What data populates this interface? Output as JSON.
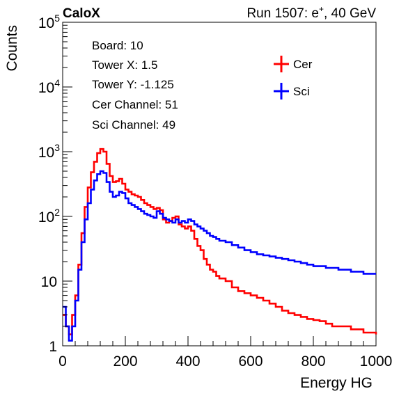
{
  "chart_data": {
    "type": "line",
    "title_left": "CaloX",
    "title_right_prefix": "Run 1507: e",
    "title_right_sup": "+",
    "title_right_suffix": ", 40 GeV",
    "xlabel": "Energy HG",
    "ylabel": "Counts",
    "xlim": [
      0,
      1000
    ],
    "ylim": [
      1,
      100000
    ],
    "yscale": "log",
    "grid": false,
    "xticks": [
      0,
      200,
      400,
      600,
      800,
      1000
    ],
    "xtick_labels": [
      "0",
      "200",
      "400",
      "600",
      "800",
      "1000"
    ],
    "ytick_labels": [
      {
        "value": 1,
        "base": "1",
        "exp": ""
      },
      {
        "value": 10,
        "base": "10",
        "exp": ""
      },
      {
        "value": 100,
        "base": "10",
        "exp": "2"
      },
      {
        "value": 1000,
        "base": "10",
        "exp": "3"
      },
      {
        "value": 10000,
        "base": "10",
        "exp": "4"
      },
      {
        "value": 100000,
        "base": "10",
        "exp": "5"
      }
    ],
    "info_text": [
      "Board: 10",
      "Tower X: 1.5",
      "Tower Y: -1.125",
      "Cer Channel: 51",
      "Sci Channel: 49"
    ],
    "legend_placement": "top-right",
    "series": [
      {
        "name": "Cer",
        "color": "#ff0000",
        "x": [
          0,
          10,
          20,
          30,
          40,
          50,
          60,
          70,
          80,
          90,
          100,
          110,
          120,
          130,
          140,
          150,
          160,
          170,
          180,
          190,
          200,
          210,
          220,
          230,
          240,
          250,
          260,
          270,
          280,
          290,
          300,
          310,
          320,
          330,
          340,
          350,
          360,
          370,
          380,
          390,
          400,
          410,
          420,
          430,
          440,
          450,
          460,
          470,
          480,
          490,
          500,
          520,
          540,
          560,
          580,
          600,
          620,
          640,
          660,
          680,
          700,
          720,
          740,
          760,
          780,
          800,
          820,
          840,
          860,
          880,
          900,
          920,
          940,
          960,
          980,
          1000
        ],
        "y": [
          3,
          2,
          1.5,
          3,
          6,
          18,
          55,
          140,
          280,
          480,
          700,
          950,
          1100,
          1000,
          650,
          420,
          340,
          350,
          380,
          320,
          260,
          240,
          220,
          210,
          200,
          180,
          160,
          150,
          140,
          130,
          135,
          125,
          90,
          80,
          85,
          95,
          100,
          75,
          70,
          65,
          70,
          60,
          45,
          35,
          30,
          22,
          18,
          15,
          14,
          12,
          11,
          10,
          8,
          7,
          6.5,
          6,
          5.5,
          5,
          4.5,
          4,
          3.5,
          3.2,
          3,
          2.8,
          2.6,
          2.5,
          2.4,
          2.2,
          2,
          2,
          2,
          1.8,
          1.8,
          1.6,
          1.6,
          1.5
        ]
      },
      {
        "name": "Sci",
        "color": "#0000ff",
        "x": [
          0,
          10,
          20,
          30,
          40,
          50,
          60,
          70,
          80,
          90,
          100,
          110,
          120,
          130,
          140,
          150,
          160,
          170,
          180,
          190,
          200,
          210,
          220,
          230,
          240,
          250,
          260,
          270,
          280,
          290,
          300,
          310,
          320,
          330,
          340,
          350,
          360,
          370,
          380,
          390,
          400,
          410,
          420,
          430,
          440,
          450,
          460,
          470,
          480,
          490,
          500,
          520,
          540,
          560,
          580,
          600,
          620,
          640,
          660,
          680,
          700,
          720,
          740,
          760,
          780,
          800,
          820,
          840,
          860,
          880,
          900,
          920,
          940,
          960,
          980,
          1000
        ],
        "y": [
          4,
          2,
          1.2,
          2,
          5,
          15,
          40,
          90,
          160,
          260,
          360,
          450,
          500,
          470,
          340,
          240,
          200,
          210,
          240,
          230,
          190,
          160,
          150,
          140,
          130,
          120,
          110,
          105,
          100,
          95,
          120,
          110,
          95,
          90,
          85,
          80,
          90,
          80,
          85,
          80,
          90,
          85,
          75,
          70,
          65,
          60,
          55,
          50,
          48,
          45,
          42,
          40,
          36,
          33,
          30,
          28,
          26,
          25,
          24,
          23,
          22,
          21,
          20,
          19,
          18,
          17,
          17,
          16,
          16,
          15,
          15,
          14,
          14,
          13,
          13,
          13
        ]
      }
    ]
  }
}
